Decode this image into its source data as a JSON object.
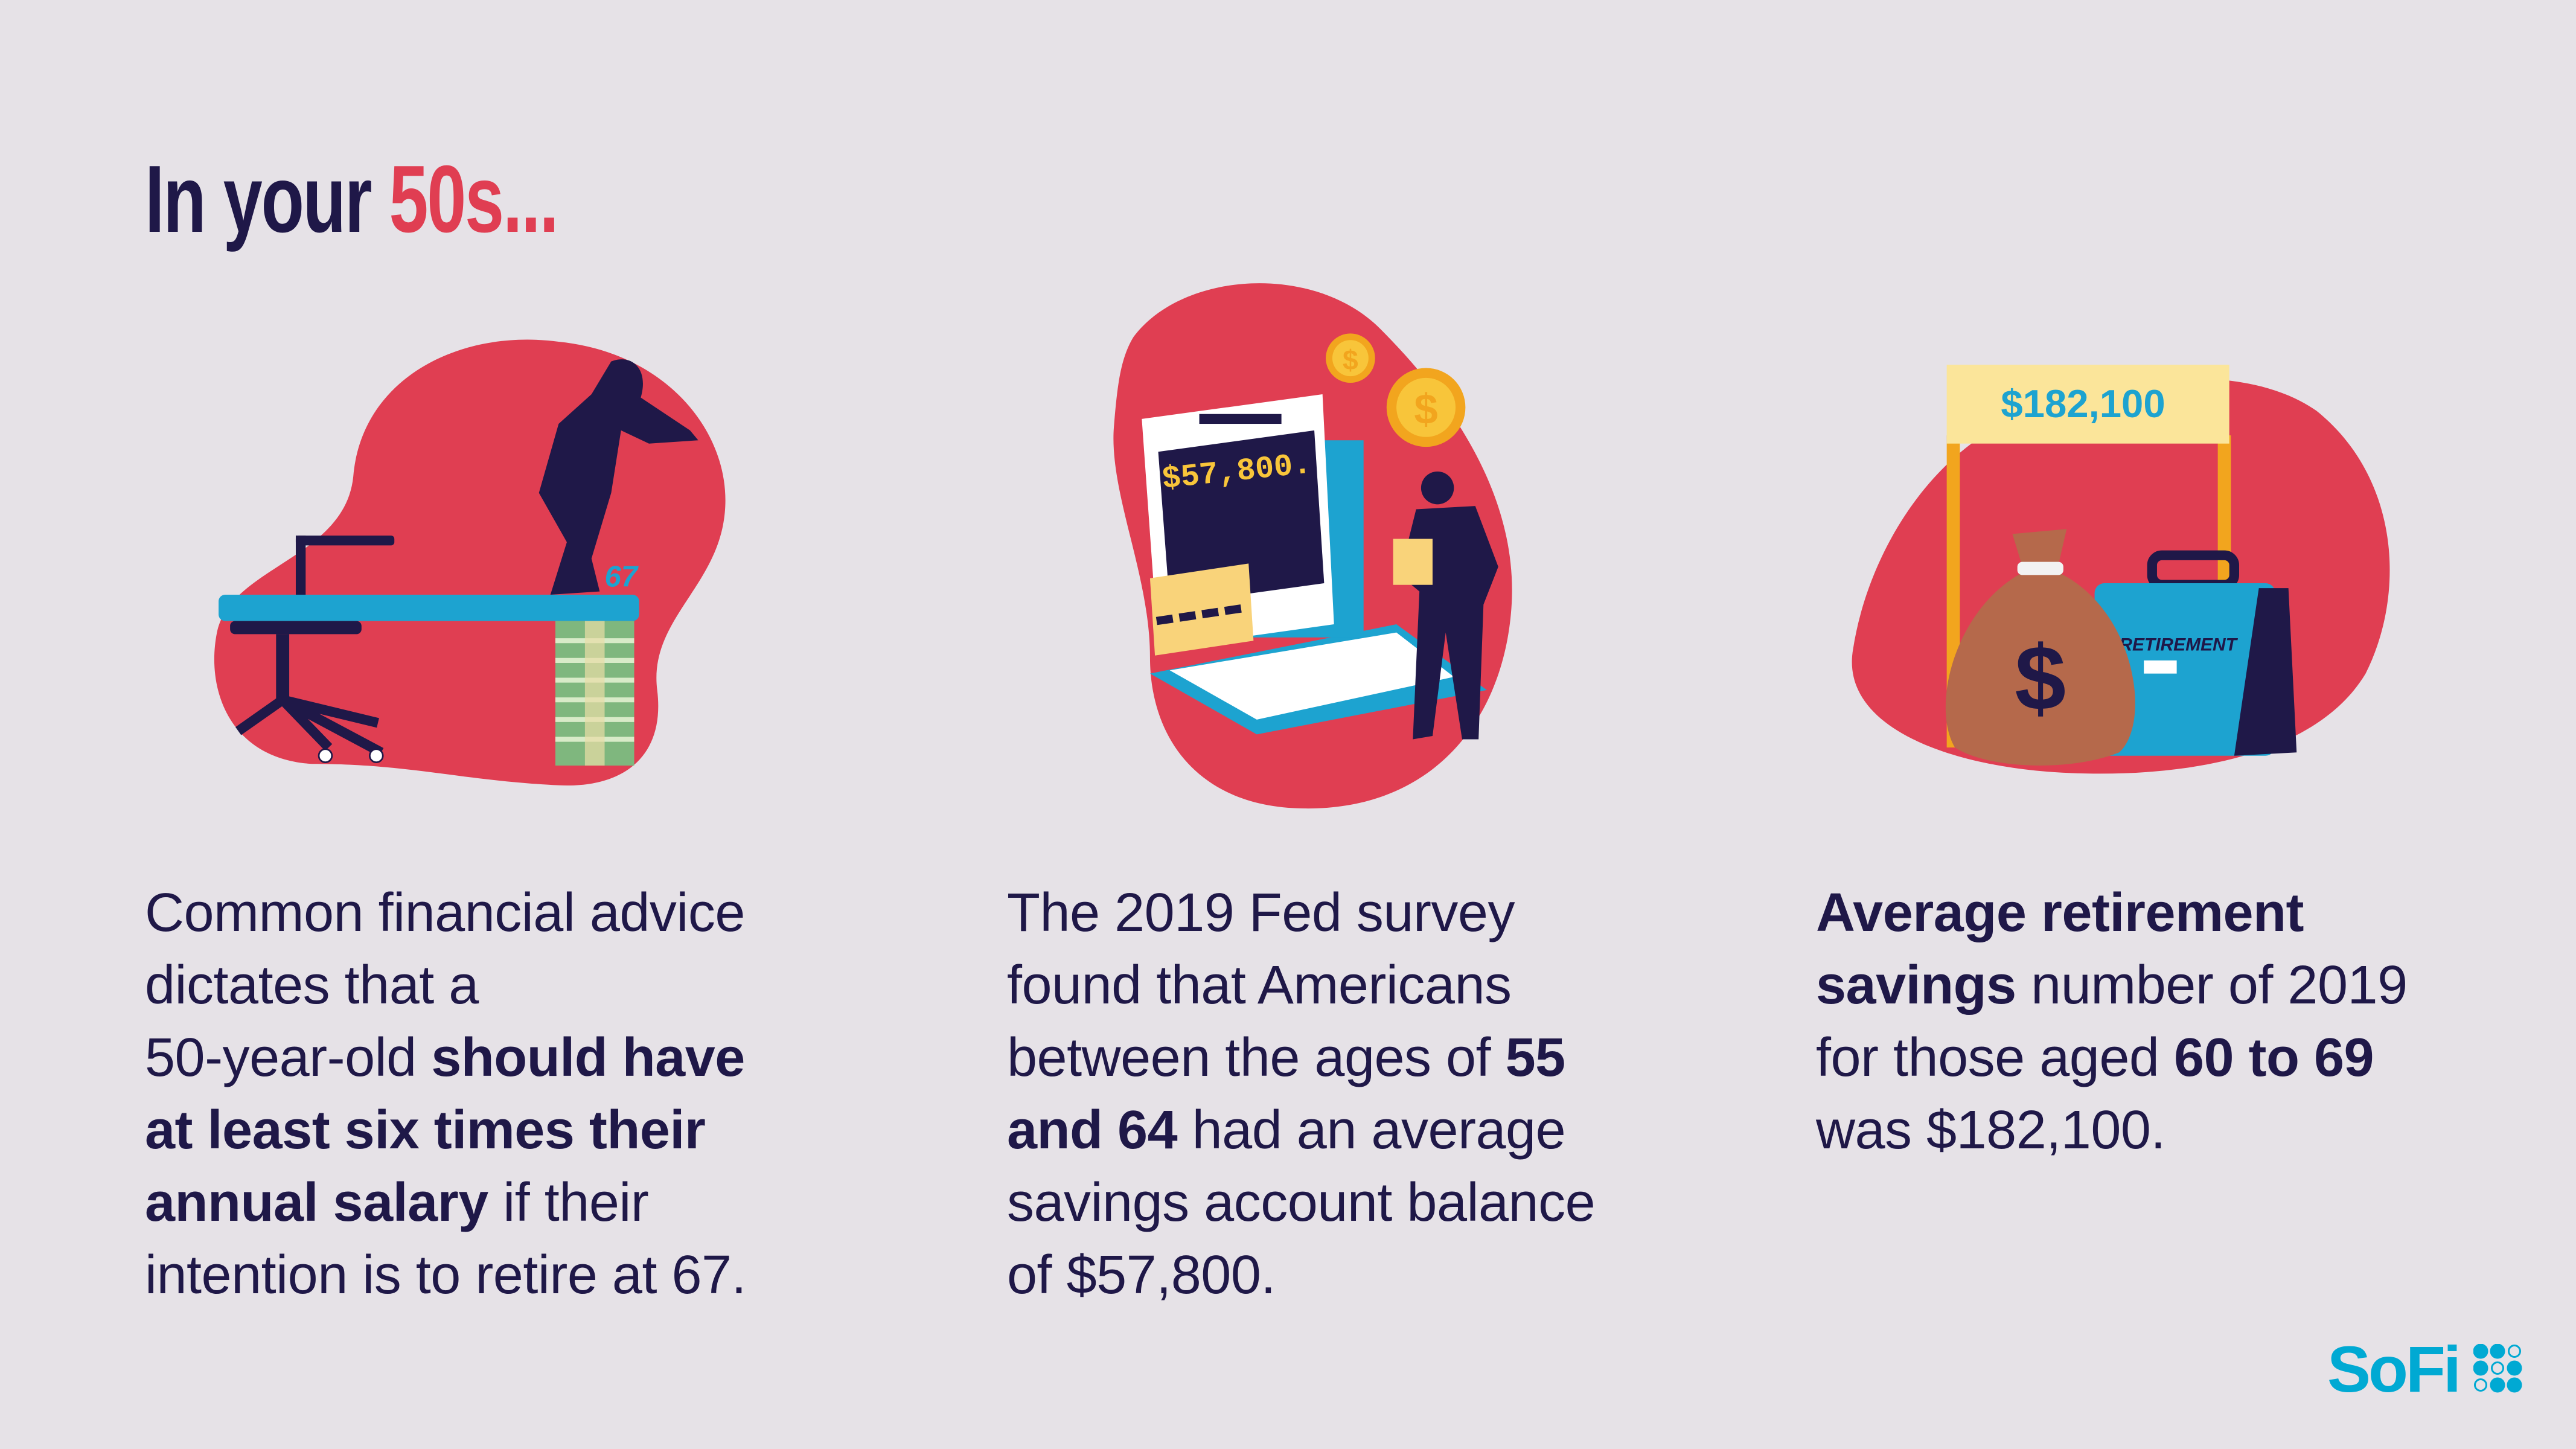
{
  "title": {
    "prefix": "In your ",
    "accent": "50s..."
  },
  "colors": {
    "navy": "#1F1848",
    "red": "#E03E52",
    "blue": "#1DA3D0",
    "yellow": "#F8C53A",
    "brand": "#00A9D3",
    "background": "#E6E2E7"
  },
  "columns": [
    {
      "segments": [
        {
          "t": "Common financial advice",
          "bold": false
        },
        {
          "t": "dictates that a",
          "bold": false
        },
        {
          "t": "50-year-old ",
          "bold": false
        },
        {
          "t": "should have",
          "bold": true
        },
        {
          "t": "at least six times their",
          "bold": true
        },
        {
          "t": "annual salary",
          "bold": true
        },
        {
          "t": " if their",
          "bold": false
        },
        {
          "t": "intention is to retire at 67.",
          "bold": false
        }
      ]
    },
    {
      "segments": [
        {
          "t": "The 2019 Fed survey",
          "bold": false
        },
        {
          "t": "found that Americans",
          "bold": false
        },
        {
          "t": "between the ages of ",
          "bold": false
        },
        {
          "t": "55",
          "bold": true
        },
        {
          "t": "and 64",
          "bold": true
        },
        {
          "t": " had an average",
          "bold": false
        },
        {
          "t": "savings account balance",
          "bold": false
        },
        {
          "t": "of $57,800.",
          "bold": false
        }
      ]
    },
    {
      "segments": [
        {
          "t": "Average retirement",
          "bold": true
        },
        {
          "t": "savings",
          "bold": true
        },
        {
          "t": " number of 2019",
          "bold": false
        },
        {
          "t": "for those aged ",
          "bold": false
        },
        {
          "t": "60 to 69",
          "bold": true
        },
        {
          "t": "was $182,100.",
          "bold": false
        }
      ]
    }
  ],
  "illustrations": {
    "board_number": "67",
    "screen_amount": "$57,800.",
    "coin_symbol": "$",
    "sign_amount": "$182,100",
    "briefcase_label": "RETIREMENT",
    "bag_symbol": "$"
  },
  "logo": {
    "text": "SoFi"
  }
}
